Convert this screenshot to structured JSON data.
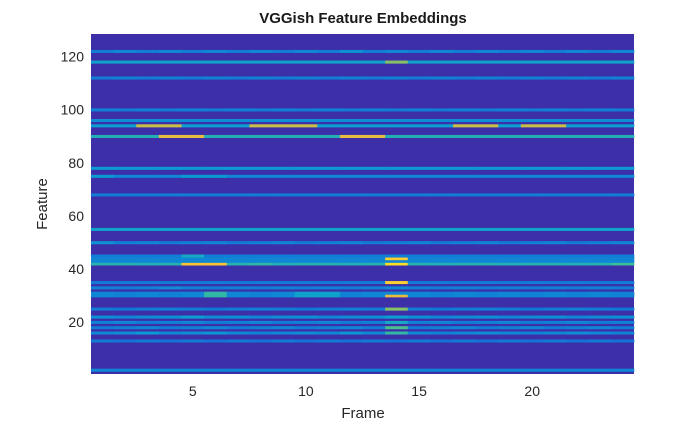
{
  "chart_data": {
    "type": "heatmap",
    "title": "VGGish Feature Embeddings",
    "xlabel": "Frame",
    "ylabel": "Feature",
    "xlim": [
      1,
      24
    ],
    "ylim": [
      1,
      128
    ],
    "xticks": [
      5,
      10,
      15,
      20
    ],
    "yticks": [
      20,
      40,
      60,
      80,
      100,
      120
    ],
    "colormap": "parula",
    "background_color": "#3d2fa8",
    "grid": false,
    "frames": 24,
    "features": 128,
    "rows": [
      {
        "feature": 2,
        "values": [
          0.3,
          0.3,
          0.3,
          0.3,
          0.3,
          0.3,
          0.3,
          0.3,
          0.3,
          0.3,
          0.3,
          0.3,
          0.3,
          0.3,
          0.3,
          0.3,
          0.3,
          0.3,
          0.3,
          0.3,
          0.3,
          0.3,
          0.3,
          0.3
        ]
      },
      {
        "feature": 13,
        "values": [
          0.25,
          0.22,
          0.25,
          0.22,
          0.25,
          0.22,
          0.25,
          0.22,
          0.25,
          0.22,
          0.25,
          0.22,
          0.25,
          0.22,
          0.25,
          0.22,
          0.25,
          0.22,
          0.25,
          0.22,
          0.25,
          0.22,
          0.25,
          0.22
        ]
      },
      {
        "feature": 16,
        "values": [
          0.3,
          0.32,
          0.38,
          0.3,
          0.32,
          0.36,
          0.3,
          0.28,
          0.3,
          0.32,
          0.3,
          0.36,
          0.3,
          0.55,
          0.3,
          0.28,
          0.3,
          0.32,
          0.3,
          0.28,
          0.3,
          0.32,
          0.3,
          0.28
        ]
      },
      {
        "feature": 18,
        "values": [
          0.25,
          0.28,
          0.3,
          0.25,
          0.28,
          0.3,
          0.25,
          0.28,
          0.3,
          0.25,
          0.28,
          0.3,
          0.25,
          0.62,
          0.25,
          0.28,
          0.3,
          0.25,
          0.28,
          0.3,
          0.25,
          0.28,
          0.3,
          0.25
        ]
      },
      {
        "feature": 20,
        "values": [
          0.28,
          0.3,
          0.26,
          0.28,
          0.3,
          0.26,
          0.28,
          0.3,
          0.26,
          0.28,
          0.3,
          0.26,
          0.28,
          0.45,
          0.28,
          0.3,
          0.26,
          0.28,
          0.3,
          0.26,
          0.28,
          0.3,
          0.26,
          0.28
        ]
      },
      {
        "feature": 22,
        "values": [
          0.34,
          0.3,
          0.32,
          0.34,
          0.4,
          0.32,
          0.34,
          0.3,
          0.32,
          0.34,
          0.3,
          0.32,
          0.34,
          0.4,
          0.34,
          0.3,
          0.32,
          0.34,
          0.3,
          0.32,
          0.34,
          0.3,
          0.32,
          0.34
        ]
      },
      {
        "feature": 25,
        "values": [
          0.26,
          0.24,
          0.26,
          0.28,
          0.26,
          0.24,
          0.26,
          0.28,
          0.26,
          0.24,
          0.26,
          0.28,
          0.26,
          0.7,
          0.26,
          0.24,
          0.26,
          0.28,
          0.26,
          0.24,
          0.26,
          0.28,
          0.26,
          0.24
        ]
      },
      {
        "feature": 30,
        "values": [
          0.3,
          0.28,
          0.3,
          0.28,
          0.3,
          0.55,
          0.3,
          0.28,
          0.3,
          0.42,
          0.42,
          0.28,
          0.3,
          0.85,
          0.3,
          0.28,
          0.3,
          0.28,
          0.3,
          0.28,
          0.3,
          0.28,
          0.3,
          0.28
        ]
      },
      {
        "feature": 31,
        "values": [
          0.3,
          0.28,
          0.3,
          0.28,
          0.3,
          0.55,
          0.3,
          0.28,
          0.3,
          0.42,
          0.42,
          0.28,
          0.3,
          0.3,
          0.3,
          0.28,
          0.3,
          0.28,
          0.3,
          0.28,
          0.3,
          0.28,
          0.3,
          0.28
        ]
      },
      {
        "feature": 33,
        "values": [
          0.28,
          0.26,
          0.28,
          0.32,
          0.28,
          0.26,
          0.28,
          0.26,
          0.28,
          0.26,
          0.28,
          0.26,
          0.28,
          0.3,
          0.28,
          0.26,
          0.28,
          0.26,
          0.28,
          0.26,
          0.28,
          0.26,
          0.28,
          0.26
        ]
      },
      {
        "feature": 35,
        "values": [
          0.25,
          0.25,
          0.25,
          0.25,
          0.25,
          0.25,
          0.25,
          0.25,
          0.25,
          0.25,
          0.25,
          0.25,
          0.25,
          0.92,
          0.25,
          0.25,
          0.25,
          0.25,
          0.25,
          0.25,
          0.25,
          0.25,
          0.25,
          0.25
        ]
      },
      {
        "feature": 42,
        "values": [
          0.52,
          0.52,
          0.5,
          0.52,
          0.9,
          0.9,
          0.52,
          0.55,
          0.5,
          0.52,
          0.52,
          0.5,
          0.52,
          0.95,
          0.52,
          0.5,
          0.52,
          0.52,
          0.5,
          0.52,
          0.52,
          0.5,
          0.52,
          0.6
        ]
      },
      {
        "feature": 43,
        "values": [
          0.3,
          0.3,
          0.3,
          0.3,
          0.3,
          0.3,
          0.3,
          0.3,
          0.3,
          0.3,
          0.3,
          0.3,
          0.3,
          0.3,
          0.3,
          0.3,
          0.3,
          0.3,
          0.3,
          0.3,
          0.3,
          0.3,
          0.3,
          0.3
        ]
      },
      {
        "feature": 44,
        "values": [
          0.3,
          0.3,
          0.3,
          0.3,
          0.3,
          0.3,
          0.3,
          0.3,
          0.3,
          0.3,
          0.3,
          0.3,
          0.3,
          0.92,
          0.3,
          0.3,
          0.3,
          0.3,
          0.3,
          0.3,
          0.3,
          0.3,
          0.3,
          0.3
        ]
      },
      {
        "feature": 45,
        "values": [
          0.26,
          0.26,
          0.26,
          0.26,
          0.45,
          0.26,
          0.26,
          0.26,
          0.26,
          0.26,
          0.26,
          0.26,
          0.26,
          0.26,
          0.26,
          0.26,
          0.26,
          0.26,
          0.26,
          0.26,
          0.26,
          0.26,
          0.26,
          0.26
        ]
      },
      {
        "feature": 50,
        "values": [
          0.35,
          0.28,
          0.3,
          0.26,
          0.28,
          0.3,
          0.26,
          0.28,
          0.3,
          0.26,
          0.28,
          0.3,
          0.26,
          0.28,
          0.3,
          0.26,
          0.28,
          0.3,
          0.26,
          0.28,
          0.3,
          0.26,
          0.28,
          0.3
        ]
      },
      {
        "feature": 55,
        "values": [
          0.42,
          0.42,
          0.42,
          0.42,
          0.42,
          0.42,
          0.42,
          0.42,
          0.42,
          0.42,
          0.42,
          0.42,
          0.42,
          0.42,
          0.42,
          0.42,
          0.42,
          0.42,
          0.42,
          0.42,
          0.42,
          0.42,
          0.42,
          0.42
        ]
      },
      {
        "feature": 68,
        "values": [
          0.26,
          0.26,
          0.26,
          0.26,
          0.26,
          0.26,
          0.26,
          0.26,
          0.26,
          0.26,
          0.26,
          0.26,
          0.26,
          0.26,
          0.26,
          0.26,
          0.26,
          0.26,
          0.26,
          0.26,
          0.26,
          0.26,
          0.26,
          0.26
        ]
      },
      {
        "feature": 75,
        "values": [
          0.38,
          0.3,
          0.3,
          0.3,
          0.38,
          0.38,
          0.3,
          0.3,
          0.3,
          0.3,
          0.3,
          0.3,
          0.3,
          0.3,
          0.3,
          0.3,
          0.3,
          0.3,
          0.3,
          0.3,
          0.3,
          0.3,
          0.3,
          0.3
        ]
      },
      {
        "feature": 78,
        "values": [
          0.38,
          0.38,
          0.38,
          0.38,
          0.38,
          0.38,
          0.38,
          0.38,
          0.38,
          0.38,
          0.38,
          0.38,
          0.38,
          0.38,
          0.38,
          0.38,
          0.38,
          0.38,
          0.38,
          0.38,
          0.38,
          0.38,
          0.38,
          0.38
        ]
      },
      {
        "feature": 90,
        "values": [
          0.5,
          0.5,
          0.5,
          0.85,
          0.85,
          0.5,
          0.5,
          0.5,
          0.5,
          0.5,
          0.5,
          0.85,
          0.85,
          0.5,
          0.5,
          0.5,
          0.5,
          0.5,
          0.5,
          0.5,
          0.5,
          0.5,
          0.5,
          0.5
        ]
      },
      {
        "feature": 94,
        "values": [
          0.4,
          0.4,
          0.8,
          0.8,
          0.4,
          0.4,
          0.4,
          0.8,
          0.8,
          0.8,
          0.4,
          0.4,
          0.4,
          0.4,
          0.4,
          0.4,
          0.8,
          0.8,
          0.4,
          0.8,
          0.8,
          0.4,
          0.4,
          0.4
        ]
      },
      {
        "feature": 96,
        "values": [
          0.32,
          0.32,
          0.32,
          0.32,
          0.32,
          0.32,
          0.32,
          0.32,
          0.32,
          0.32,
          0.32,
          0.32,
          0.32,
          0.32,
          0.32,
          0.32,
          0.32,
          0.32,
          0.32,
          0.32,
          0.32,
          0.32,
          0.32,
          0.32
        ]
      },
      {
        "feature": 100,
        "values": [
          0.28,
          0.26,
          0.28,
          0.26,
          0.28,
          0.26,
          0.28,
          0.26,
          0.28,
          0.26,
          0.28,
          0.26,
          0.28,
          0.26,
          0.28,
          0.26,
          0.28,
          0.26,
          0.28,
          0.26,
          0.28,
          0.26,
          0.28,
          0.26
        ]
      },
      {
        "feature": 112,
        "values": [
          0.26,
          0.28,
          0.26,
          0.28,
          0.26,
          0.28,
          0.26,
          0.28,
          0.26,
          0.28,
          0.26,
          0.28,
          0.26,
          0.28,
          0.26,
          0.28,
          0.26,
          0.28,
          0.26,
          0.28,
          0.26,
          0.28,
          0.26,
          0.28
        ]
      },
      {
        "feature": 118,
        "values": [
          0.42,
          0.42,
          0.42,
          0.42,
          0.42,
          0.42,
          0.42,
          0.42,
          0.42,
          0.42,
          0.42,
          0.42,
          0.42,
          0.7,
          0.42,
          0.42,
          0.42,
          0.42,
          0.42,
          0.42,
          0.42,
          0.42,
          0.42,
          0.42
        ]
      },
      {
        "feature": 122,
        "values": [
          0.26,
          0.3,
          0.26,
          0.3,
          0.26,
          0.3,
          0.26,
          0.3,
          0.26,
          0.3,
          0.26,
          0.34,
          0.26,
          0.3,
          0.26,
          0.3,
          0.26,
          0.3,
          0.26,
          0.3,
          0.26,
          0.3,
          0.26,
          0.3
        ]
      }
    ]
  }
}
